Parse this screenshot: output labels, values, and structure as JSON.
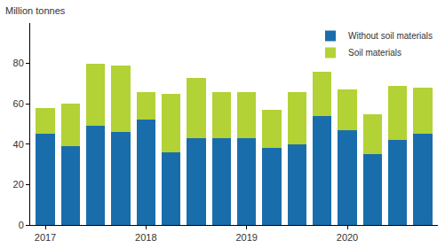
{
  "chart_data": {
    "type": "bar",
    "stacked": true,
    "y_label": "Million tonnes",
    "categories": [
      "2017",
      null,
      null,
      null,
      "2018",
      null,
      null,
      null,
      "2019",
      null,
      null,
      null,
      "2020",
      null,
      null,
      null
    ],
    "series": [
      {
        "name": "Without soil materials",
        "color": "#1a6dab",
        "values": [
          45,
          39,
          49,
          46,
          52,
          36,
          43,
          43,
          43,
          38,
          40,
          54,
          47,
          35,
          42,
          45
        ]
      },
      {
        "name": "Soil materials",
        "color": "#b2d235",
        "values": [
          13,
          21,
          31,
          33,
          14,
          29,
          30,
          23,
          23,
          19,
          26,
          22,
          20,
          20,
          27,
          23
        ]
      }
    ],
    "ylim": [
      0,
      100
    ],
    "yticks": [
      0,
      20,
      40,
      60,
      80
    ],
    "grid": false,
    "legend": "top right"
  }
}
